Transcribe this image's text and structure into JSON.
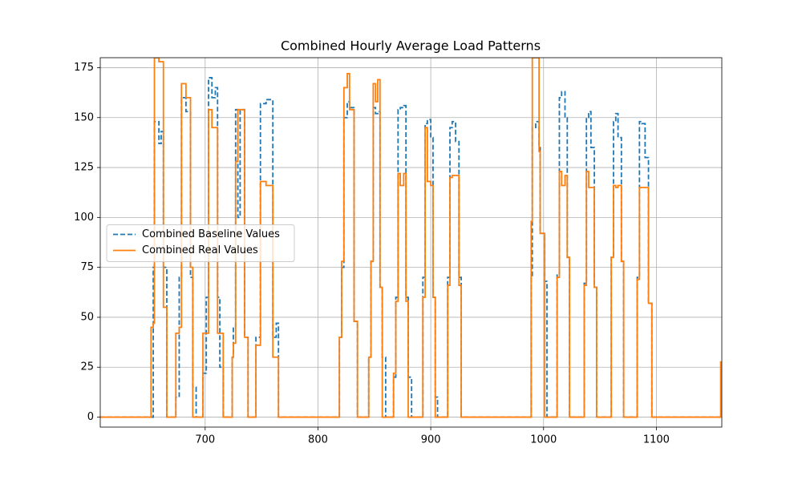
{
  "chart_data": {
    "type": "line",
    "drawstyle": "steps-post",
    "title": "Combined Hourly Average Load Patterns",
    "x": [
      607,
      652,
      654,
      655,
      659,
      661,
      663,
      666,
      674,
      677,
      679,
      683,
      687,
      689,
      692,
      698,
      701,
      703,
      706,
      709,
      711,
      713,
      716,
      724,
      725,
      727,
      729,
      731,
      735,
      738,
      745,
      749,
      754,
      760,
      763,
      765,
      819,
      821,
      823,
      826,
      828,
      832,
      835,
      845,
      847,
      849,
      851,
      853,
      855,
      857,
      860,
      867,
      869,
      871,
      873,
      876,
      878,
      880,
      883,
      893,
      895,
      897,
      900,
      902,
      904,
      906,
      915,
      917,
      919,
      922,
      925,
      927,
      989,
      990,
      993,
      996,
      997,
      1001,
      1003,
      1012,
      1014,
      1016,
      1019,
      1021,
      1023,
      1036,
      1038,
      1040,
      1042,
      1045,
      1047,
      1060,
      1062,
      1064,
      1066,
      1069,
      1071,
      1083,
      1085,
      1087,
      1090,
      1093,
      1096,
      1157
    ],
    "series": [
      {
        "name": "Combined Baseline Values",
        "color": "#1f77b4",
        "dash": true,
        "values": [
          0,
          0,
          75,
          148,
          137,
          143,
          75,
          0,
          10,
          70,
          160,
          153,
          70,
          15,
          0,
          22,
          60,
          170,
          160,
          165,
          60,
          25,
          0,
          30,
          45,
          154,
          100,
          154,
          40,
          0,
          40,
          157,
          159,
          40,
          47,
          0,
          40,
          75,
          150,
          158,
          155,
          48,
          0,
          30,
          78,
          155,
          152,
          153,
          65,
          30,
          0,
          20,
          60,
          154,
          155,
          156,
          60,
          20,
          0,
          70,
          147,
          149,
          140,
          60,
          10,
          0,
          70,
          145,
          148,
          138,
          70,
          0,
          70,
          145,
          148,
          135,
          92,
          68,
          0,
          72,
          160,
          163,
          150,
          80,
          0,
          67,
          150,
          153,
          135,
          65,
          0,
          80,
          148,
          152,
          140,
          78,
          0,
          70,
          148,
          147,
          130,
          57,
          0,
          0
        ]
      },
      {
        "name": "Combined Real Values",
        "color": "#ff7f0e",
        "dash": false,
        "values": [
          0,
          45,
          47,
          180,
          178,
          178,
          55,
          0,
          42,
          45,
          167,
          160,
          75,
          0,
          0,
          42,
          42,
          154,
          145,
          145,
          42,
          42,
          0,
          30,
          37,
          128,
          154,
          154,
          40,
          0,
          36,
          118,
          116,
          30,
          30,
          0,
          40,
          78,
          165,
          172,
          154,
          48,
          0,
          30,
          78,
          167,
          158,
          169,
          65,
          0,
          0,
          22,
          58,
          122,
          116,
          122,
          58,
          0,
          0,
          60,
          145,
          118,
          116,
          60,
          0,
          0,
          66,
          120,
          121,
          121,
          66,
          0,
          98,
          180,
          180,
          133,
          92,
          0,
          0,
          70,
          123,
          116,
          121,
          80,
          0,
          66,
          123,
          115,
          115,
          65,
          0,
          80,
          116,
          115,
          116,
          78,
          0,
          69,
          115,
          115,
          115,
          57,
          0,
          28
        ]
      }
    ],
    "xlim": [
      607,
      1158
    ],
    "ylim": [
      -5,
      180
    ],
    "xticks": [
      700,
      800,
      900,
      1000,
      1100
    ],
    "yticks": [
      0,
      25,
      50,
      75,
      100,
      125,
      150,
      175
    ],
    "grid": true,
    "legend": "center left"
  }
}
